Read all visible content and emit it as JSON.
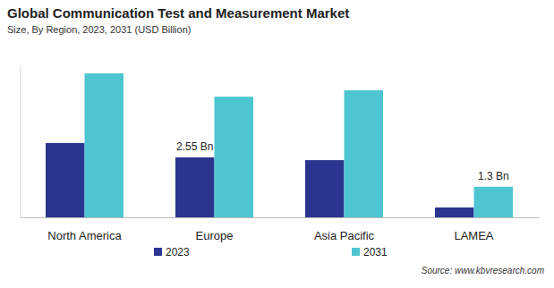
{
  "chart_data": {
    "type": "bar",
    "title": "Global Communication Test and Measurement Market",
    "subtitle": "Size, By Region, 2023, 2031 (USD Billion)",
    "source": "Source: www.kbvresearch.com",
    "categories": [
      "North America",
      "Europe",
      "Asia Pacific",
      "LAMEA"
    ],
    "series": [
      {
        "name": "2023",
        "color": "#2b3590",
        "values": [
          3.16,
          2.55,
          2.43,
          0.42
        ],
        "value_labels": [
          null,
          "2.55 Bn",
          null,
          null
        ]
      },
      {
        "name": "2031",
        "color": "#4ec6d1",
        "values": [
          6.12,
          5.13,
          5.4,
          1.3
        ],
        "value_labels": [
          null,
          null,
          null,
          "1.3 Bn"
        ]
      }
    ],
    "ylim": [
      0,
      6.5
    ],
    "yticks": [],
    "grid": false,
    "legend": "bottom",
    "data_labels": true,
    "tick_labels": "x"
  }
}
